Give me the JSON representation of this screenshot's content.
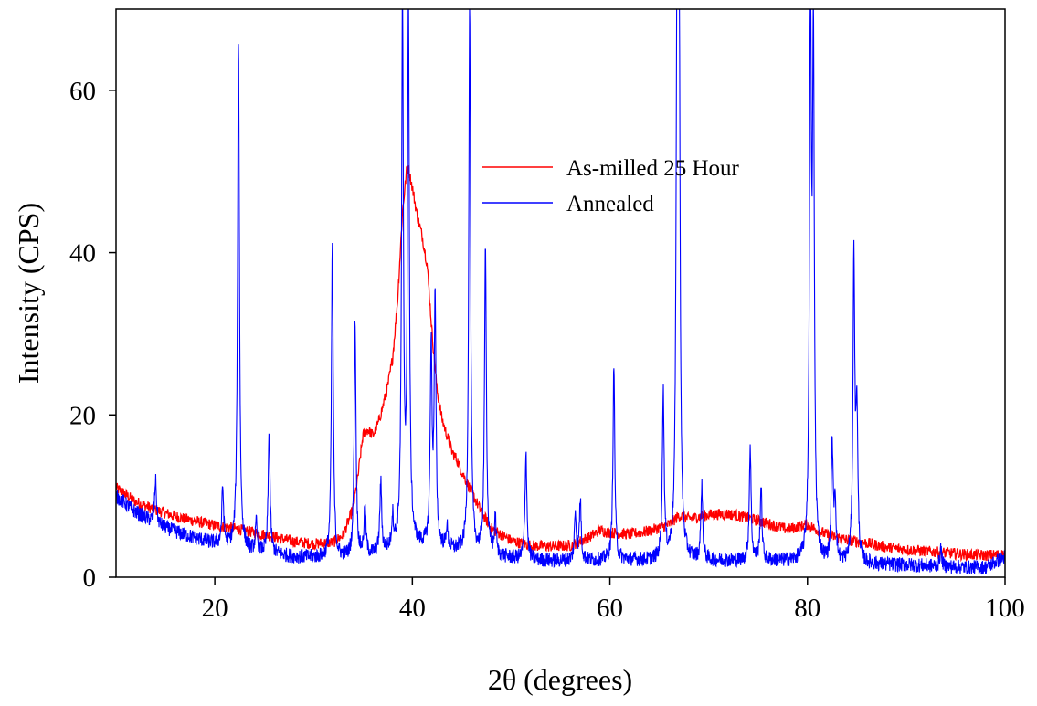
{
  "chart_data": {
    "type": "line",
    "title": "",
    "xlabel": "2θ (degrees)",
    "ylabel": "Intensity (CPS)",
    "xlim": [
      10,
      100
    ],
    "ylim": [
      0,
      70
    ],
    "xticks": [
      20,
      40,
      60,
      80,
      100
    ],
    "yticks": [
      0,
      20,
      40,
      60
    ],
    "grid": false,
    "legend_position": "top-center",
    "series": [
      {
        "name": "As-milled 25 Hour",
        "color": "#ff0000",
        "x": [
          10,
          12,
          14,
          16,
          18,
          20,
          22,
          24,
          26,
          28,
          30,
          32,
          33,
          34,
          34.5,
          35,
          35.5,
          36,
          36.5,
          37,
          37.5,
          38,
          38.5,
          39,
          39.5,
          40,
          40.5,
          41,
          41.5,
          42,
          42.5,
          43,
          43.5,
          44,
          44.5,
          45,
          46,
          47,
          48,
          50,
          52,
          54,
          56,
          58,
          59,
          60,
          62,
          64,
          66,
          67,
          68,
          70,
          72,
          74,
          76,
          78,
          80,
          81,
          82,
          84,
          86,
          88,
          90,
          92,
          94,
          96,
          98,
          100
        ],
        "y": [
          11.0,
          9.3,
          8.3,
          7.5,
          6.9,
          6.4,
          6.0,
          5.5,
          5.0,
          4.4,
          4.1,
          4.3,
          5.2,
          8.5,
          12.5,
          17.5,
          18.2,
          17.5,
          18.8,
          21.0,
          23.5,
          27.0,
          34.0,
          45.0,
          51.0,
          48.0,
          44.5,
          42.0,
          38.5,
          30.0,
          23.0,
          19.5,
          17.5,
          15.5,
          14.5,
          13.0,
          10.5,
          8.0,
          6.0,
          4.5,
          3.9,
          3.8,
          3.9,
          5.0,
          5.8,
          5.5,
          5.3,
          5.7,
          6.5,
          7.6,
          7.2,
          7.7,
          7.8,
          7.3,
          6.6,
          5.9,
          6.5,
          5.8,
          5.2,
          4.6,
          4.2,
          3.7,
          3.4,
          3.2,
          3.0,
          2.8,
          2.7,
          2.8
        ]
      },
      {
        "name": "Annealed",
        "color": "#0000ff",
        "baseline_x": [
          10,
          12,
          14,
          16,
          18,
          20,
          22,
          24,
          26,
          28,
          30,
          32,
          34,
          36,
          38,
          40,
          42,
          44,
          46,
          48,
          50,
          52,
          54,
          56,
          58,
          60,
          62,
          64,
          66,
          68,
          70,
          72,
          74,
          76,
          78,
          80,
          82,
          84,
          86,
          88,
          90,
          92,
          94,
          96,
          98,
          100
        ],
        "baseline_y": [
          10.0,
          8.0,
          6.6,
          5.6,
          4.8,
          4.1,
          3.6,
          3.1,
          2.8,
          2.5,
          2.4,
          2.3,
          2.4,
          2.7,
          3.2,
          3.8,
          3.5,
          3.2,
          2.9,
          2.6,
          2.3,
          2.1,
          2.0,
          2.0,
          2.0,
          2.1,
          2.1,
          2.0,
          2.0,
          2.0,
          2.0,
          2.0,
          2.0,
          2.0,
          1.9,
          1.8,
          1.7,
          1.7,
          1.6,
          1.5,
          1.5,
          1.4,
          1.3,
          1.2,
          1.2,
          2.5
        ],
        "peaks": [
          {
            "x": 14.0,
            "y": 12.0
          },
          {
            "x": 20.8,
            "y": 11.0
          },
          {
            "x": 22.4,
            "y": 66.0
          },
          {
            "x": 24.2,
            "y": 6.5
          },
          {
            "x": 25.5,
            "y": 18.0
          },
          {
            "x": 31.9,
            "y": 41.0
          },
          {
            "x": 34.2,
            "y": 31.5
          },
          {
            "x": 35.2,
            "y": 8.5
          },
          {
            "x": 36.8,
            "y": 11.5
          },
          {
            "x": 38.0,
            "y": 7.0
          },
          {
            "x": 39.0,
            "y": 70.0
          },
          {
            "x": 39.6,
            "y": 70.0
          },
          {
            "x": 41.9,
            "y": 27.5
          },
          {
            "x": 42.3,
            "y": 33.5
          },
          {
            "x": 43.5,
            "y": 6.0
          },
          {
            "x": 45.8,
            "y": 70.0
          },
          {
            "x": 47.4,
            "y": 41.0
          },
          {
            "x": 48.4,
            "y": 7.0
          },
          {
            "x": 51.5,
            "y": 15.5
          },
          {
            "x": 56.5,
            "y": 7.8
          },
          {
            "x": 57.0,
            "y": 9.5
          },
          {
            "x": 60.4,
            "y": 26.0
          },
          {
            "x": 65.4,
            "y": 22.5
          },
          {
            "x": 66.8,
            "y": 70.0
          },
          {
            "x": 67.0,
            "y": 70.0
          },
          {
            "x": 69.3,
            "y": 11.0
          },
          {
            "x": 74.2,
            "y": 16.0
          },
          {
            "x": 75.3,
            "y": 11.0
          },
          {
            "x": 80.3,
            "y": 70.0
          },
          {
            "x": 80.6,
            "y": 63.0
          },
          {
            "x": 82.5,
            "y": 16.0
          },
          {
            "x": 82.8,
            "y": 9.0
          },
          {
            "x": 84.7,
            "y": 39.0
          },
          {
            "x": 85.0,
            "y": 19.5
          },
          {
            "x": 93.5,
            "y": 3.5
          }
        ]
      }
    ]
  }
}
